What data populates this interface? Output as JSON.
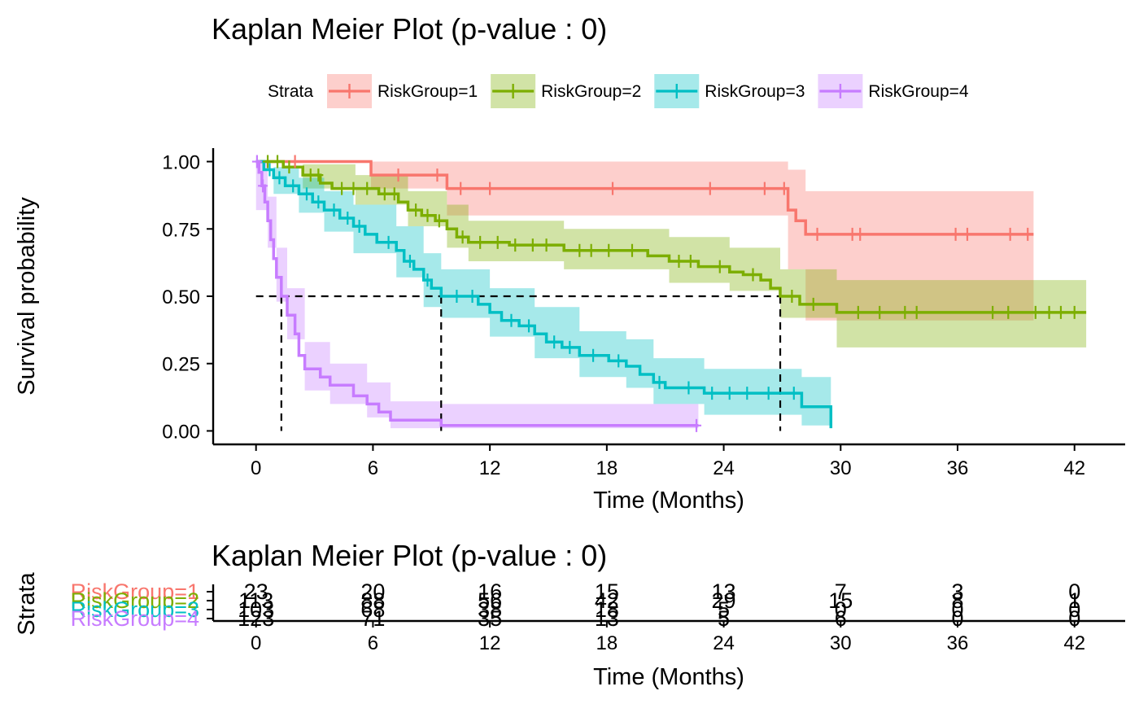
{
  "chart_data": [
    {
      "type": "line",
      "subtype": "kaplan-meier",
      "title": "Kaplan Meier Plot (p-value : 0)",
      "xlabel": "Time (Months)",
      "ylabel": "Survival probability",
      "xlim": [
        -2.2,
        44.6
      ],
      "ylim": [
        -0.05,
        1.05
      ],
      "xticks": [
        0,
        6,
        12,
        18,
        24,
        30,
        36,
        42
      ],
      "xtick_labels": [
        "0",
        "6",
        "12",
        "18",
        "24",
        "30",
        "36",
        "42"
      ],
      "yticks": [
        0,
        0.25,
        0.5,
        0.75,
        1.0
      ],
      "ytick_labels": [
        "0.00",
        "0.25",
        "0.50",
        "0.75",
        "1.00"
      ],
      "grid": false,
      "legend": {
        "title": "Strata",
        "position": "top",
        "entries": [
          "RiskGroup=1",
          "RiskGroup=2",
          "RiskGroup=3",
          "RiskGroup=4"
        ]
      },
      "median_lines": [
        {
          "series": "RiskGroup=4",
          "x": 1.3
        },
        {
          "series": "RiskGroup=3",
          "x": 9.5
        },
        {
          "series": "RiskGroup=2",
          "x": 26.9
        }
      ],
      "series": [
        {
          "name": "RiskGroup=1",
          "color": "#F8766D",
          "steps": [
            [
              0,
              1.0
            ],
            [
              5.9,
              0.95
            ],
            [
              9.8,
              0.9
            ],
            [
              27.3,
              0.82
            ],
            [
              27.7,
              0.78
            ],
            [
              28.2,
              0.73
            ],
            [
              39.9,
              0.73
            ]
          ],
          "lower": [
            [
              0,
              1.0
            ],
            [
              5.9,
              0.9
            ],
            [
              9.8,
              0.8
            ],
            [
              27.3,
              0.6
            ],
            [
              28.2,
              0.41
            ],
            [
              39.9,
              0.41
            ]
          ],
          "upper": [
            [
              0,
              1.0
            ],
            [
              9.8,
              1.0
            ],
            [
              27.3,
              0.97
            ],
            [
              28.2,
              0.89
            ],
            [
              39.9,
              0.89
            ]
          ],
          "censor_times": [
            2.0,
            7.3,
            9.3,
            10.5,
            12.0,
            18.3,
            23.3,
            26.1,
            27.1,
            28.8,
            30.6,
            31.0,
            35.9,
            36.5,
            38.7,
            39.6
          ]
        },
        {
          "name": "RiskGroup=2",
          "color": "#7CAE00",
          "steps": [
            [
              0,
              1.0
            ],
            [
              1.4,
              0.98
            ],
            [
              2.4,
              0.95
            ],
            [
              3.3,
              0.92
            ],
            [
              3.9,
              0.9
            ],
            [
              5.1,
              0.9
            ],
            [
              6.3,
              0.88
            ],
            [
              7.3,
              0.85
            ],
            [
              7.8,
              0.82
            ],
            [
              8.5,
              0.8
            ],
            [
              9.2,
              0.78
            ],
            [
              9.8,
              0.75
            ],
            [
              10.3,
              0.72
            ],
            [
              10.9,
              0.7
            ],
            [
              13.0,
              0.69
            ],
            [
              15.8,
              0.67
            ],
            [
              20.1,
              0.65
            ],
            [
              21.2,
              0.63
            ],
            [
              22.7,
              0.61
            ],
            [
              24.3,
              0.59
            ],
            [
              25.0,
              0.58
            ],
            [
              25.9,
              0.56
            ],
            [
              26.4,
              0.53
            ],
            [
              26.9,
              0.5
            ],
            [
              27.9,
              0.47
            ],
            [
              29.8,
              0.44
            ],
            [
              42.6,
              0.44
            ]
          ],
          "lower": [
            [
              0,
              1.0
            ],
            [
              2.4,
              0.9
            ],
            [
              5.1,
              0.84
            ],
            [
              7.8,
              0.76
            ],
            [
              9.8,
              0.68
            ],
            [
              10.9,
              0.63
            ],
            [
              15.8,
              0.6
            ],
            [
              21.2,
              0.55
            ],
            [
              24.3,
              0.52
            ],
            [
              26.9,
              0.42
            ],
            [
              29.8,
              0.31
            ],
            [
              42.6,
              0.31
            ]
          ],
          "upper": [
            [
              0,
              1.0
            ],
            [
              2.4,
              0.99
            ],
            [
              5.1,
              0.95
            ],
            [
              7.8,
              0.89
            ],
            [
              9.8,
              0.84
            ],
            [
              10.9,
              0.78
            ],
            [
              15.8,
              0.75
            ],
            [
              21.2,
              0.72
            ],
            [
              24.3,
              0.68
            ],
            [
              26.9,
              0.6
            ],
            [
              29.8,
              0.56
            ],
            [
              42.6,
              0.56
            ]
          ],
          "censor_times": [
            0.6,
            1.1,
            1.7,
            2.8,
            3.2,
            4.4,
            5.0,
            5.7,
            6.6,
            7.1,
            8.2,
            8.8,
            9.4,
            10.6,
            11.5,
            12.4,
            13.3,
            14.2,
            14.9,
            16.6,
            17.2,
            18.1,
            19.3,
            21.7,
            22.3,
            23.8,
            25.5,
            27.5,
            28.6,
            30.9,
            32.0,
            33.3,
            33.9,
            37.8,
            38.6,
            40.0,
            40.7,
            41.3,
            42.0
          ]
        },
        {
          "name": "RiskGroup=3",
          "color": "#00BFC4",
          "steps": [
            [
              0,
              1.0
            ],
            [
              0.4,
              0.97
            ],
            [
              0.9,
              0.94
            ],
            [
              1.5,
              0.91
            ],
            [
              2.2,
              0.88
            ],
            [
              2.9,
              0.85
            ],
            [
              3.5,
              0.82
            ],
            [
              4.3,
              0.79
            ],
            [
              5.0,
              0.76
            ],
            [
              5.6,
              0.73
            ],
            [
              6.2,
              0.7
            ],
            [
              7.2,
              0.67
            ],
            [
              7.6,
              0.63
            ],
            [
              8.1,
              0.6
            ],
            [
              8.6,
              0.56
            ],
            [
              9.0,
              0.53
            ],
            [
              9.5,
              0.5
            ],
            [
              11.4,
              0.47
            ],
            [
              12.0,
              0.44
            ],
            [
              12.6,
              0.41
            ],
            [
              13.5,
              0.39
            ],
            [
              14.3,
              0.36
            ],
            [
              14.9,
              0.33
            ],
            [
              15.7,
              0.31
            ],
            [
              16.6,
              0.28
            ],
            [
              18.1,
              0.26
            ],
            [
              19.0,
              0.24
            ],
            [
              19.7,
              0.21
            ],
            [
              20.4,
              0.18
            ],
            [
              21.0,
              0.16
            ],
            [
              23.0,
              0.14
            ],
            [
              28.0,
              0.09
            ],
            [
              29.5,
              0.01
            ]
          ],
          "lower": [
            [
              0,
              1.0
            ],
            [
              0.9,
              0.88
            ],
            [
              2.2,
              0.81
            ],
            [
              3.5,
              0.74
            ],
            [
              5.0,
              0.66
            ],
            [
              7.2,
              0.57
            ],
            [
              8.6,
              0.46
            ],
            [
              9.5,
              0.42
            ],
            [
              12.0,
              0.35
            ],
            [
              14.3,
              0.27
            ],
            [
              16.6,
              0.2
            ],
            [
              19.0,
              0.16
            ],
            [
              20.4,
              0.1
            ],
            [
              23.0,
              0.06
            ],
            [
              28.0,
              0.02
            ],
            [
              29.5,
              0.0
            ]
          ],
          "upper": [
            [
              0,
              1.0
            ],
            [
              0.9,
              0.98
            ],
            [
              2.2,
              0.94
            ],
            [
              3.5,
              0.89
            ],
            [
              5.0,
              0.84
            ],
            [
              7.2,
              0.76
            ],
            [
              8.6,
              0.66
            ],
            [
              9.5,
              0.6
            ],
            [
              12.0,
              0.53
            ],
            [
              14.3,
              0.46
            ],
            [
              16.6,
              0.37
            ],
            [
              19.0,
              0.34
            ],
            [
              20.4,
              0.27
            ],
            [
              23.0,
              0.23
            ],
            [
              28.0,
              0.2
            ],
            [
              29.5,
              0.16
            ]
          ],
          "censor_times": [
            0.7,
            1.2,
            1.9,
            2.6,
            3.2,
            4.0,
            4.7,
            5.3,
            6.8,
            7.9,
            8.8,
            10.3,
            11.1,
            13.1,
            14.0,
            15.3,
            16.1,
            17.3,
            18.6,
            20.7,
            22.2,
            23.4,
            24.3,
            25.2,
            26.3,
            27.6
          ]
        },
        {
          "name": "RiskGroup=4",
          "color": "#C77CFF",
          "steps": [
            [
              0,
              1.0
            ],
            [
              0.15,
              0.96
            ],
            [
              0.3,
              0.91
            ],
            [
              0.45,
              0.85
            ],
            [
              0.6,
              0.78
            ],
            [
              0.75,
              0.71
            ],
            [
              0.9,
              0.64
            ],
            [
              1.05,
              0.57
            ],
            [
              1.3,
              0.5
            ],
            [
              1.6,
              0.43
            ],
            [
              2.0,
              0.36
            ],
            [
              2.2,
              0.28
            ],
            [
              2.5,
              0.23
            ],
            [
              3.3,
              0.2
            ],
            [
              3.8,
              0.17
            ],
            [
              5.0,
              0.13
            ],
            [
              5.7,
              0.1
            ],
            [
              6.3,
              0.07
            ],
            [
              6.9,
              0.04
            ],
            [
              9.5,
              0.02
            ],
            [
              22.7,
              0.02
            ]
          ],
          "lower": [
            [
              0,
              0.82
            ],
            [
              0.6,
              0.68
            ],
            [
              1.05,
              0.48
            ],
            [
              1.6,
              0.34
            ],
            [
              2.5,
              0.15
            ],
            [
              3.8,
              0.1
            ],
            [
              5.7,
              0.05
            ],
            [
              6.9,
              0.01
            ],
            [
              22.7,
              0.01
            ]
          ],
          "upper": [
            [
              0,
              1.0
            ],
            [
              0.6,
              0.87
            ],
            [
              1.05,
              0.68
            ],
            [
              1.6,
              0.53
            ],
            [
              2.5,
              0.33
            ],
            [
              3.8,
              0.25
            ],
            [
              5.7,
              0.18
            ],
            [
              6.9,
              0.11
            ],
            [
              9.5,
              0.1
            ],
            [
              22.7,
              0.1
            ]
          ],
          "censor_times": [
            0.05,
            0.35,
            22.6
          ]
        }
      ]
    },
    {
      "type": "table",
      "subtype": "number-at-risk",
      "title": "Kaplan Meier Plot (p-value : 0)",
      "xlabel": "Time (Months)",
      "ylabel": "Strata",
      "xticks": [
        0,
        6,
        12,
        18,
        24,
        30,
        36,
        42
      ],
      "xtick_labels": [
        "0",
        "6",
        "12",
        "18",
        "24",
        "30",
        "36",
        "42"
      ],
      "rows": [
        {
          "name": "RiskGroup=1",
          "color": "#F8766D",
          "values": [
            "23",
            "20",
            "16",
            "15",
            "13",
            "7",
            "3",
            "0"
          ]
        },
        {
          "name": "RiskGroup=2",
          "color": "#7CAE00",
          "values": [
            "113",
            "88",
            "56",
            "42",
            "29",
            "15",
            "8",
            "1"
          ]
        },
        {
          "name": "RiskGroup=3",
          "color": "#00BFC4",
          "values": [
            "103",
            "68",
            "38",
            "18",
            "5",
            "0",
            "0",
            "0"
          ]
        },
        {
          "name": "RiskGroup=4",
          "color": "#C77CFF",
          "values": [
            "123",
            "71",
            "35",
            "13",
            "5",
            "6",
            "0",
            "0"
          ]
        }
      ]
    }
  ]
}
